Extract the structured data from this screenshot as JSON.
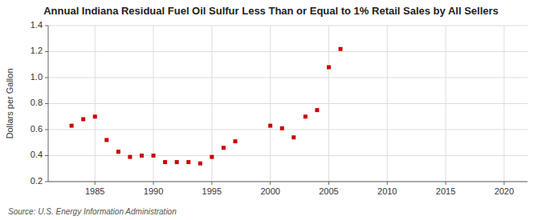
{
  "chart_data": {
    "type": "scatter",
    "title": "Annual Indiana Residual Fuel Oil Sulfur Less Than or Equal to 1% Retail Sales by All Sellers",
    "ylabel": "Dollars per Gallon",
    "source": "Source: U.S. Energy Information Administration",
    "color": "#cc0000",
    "marker": "square",
    "grid": true,
    "xlim": [
      1981,
      2022
    ],
    "ylim": [
      0.2,
      1.4
    ],
    "xticks": [
      1985,
      1990,
      1995,
      2000,
      2005,
      2010,
      2015,
      2020
    ],
    "yticks": [
      0.2,
      0.4,
      0.6,
      0.8,
      {
        "value": 1.0,
        "label": "1.0"
      },
      1.2,
      1.4
    ],
    "x": [
      1983,
      1984,
      1985,
      1986,
      1987,
      1988,
      1989,
      1990,
      1991,
      1992,
      1993,
      1994,
      1995,
      1996,
      1997,
      2000,
      2001,
      2002,
      2003,
      2004,
      2005,
      2006
    ],
    "values": [
      0.63,
      0.68,
      0.7,
      0.52,
      0.43,
      0.39,
      0.4,
      0.4,
      0.35,
      0.35,
      0.35,
      0.34,
      0.39,
      0.46,
      0.51,
      0.63,
      0.61,
      0.54,
      0.7,
      0.75,
      1.08,
      1.22
    ]
  }
}
